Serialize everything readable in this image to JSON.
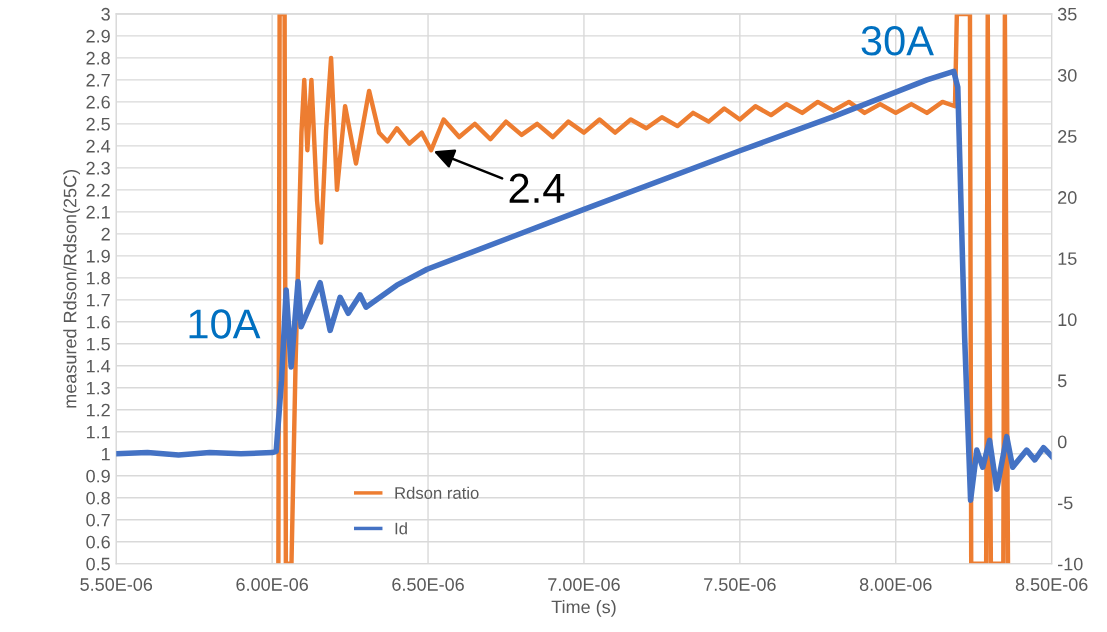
{
  "chart_data": {
    "type": "line",
    "xlabel": "Time (s)",
    "ylabel": "measured Rdson/Rdson(25C)",
    "xlim": [
      5.5e-06,
      8.5e-06
    ],
    "xticks": [
      {
        "value": 5.5e-06,
        "label": "5.50E-06"
      },
      {
        "value": 6e-06,
        "label": "6.00E-06"
      },
      {
        "value": 6.5e-06,
        "label": "6.50E-06"
      },
      {
        "value": 7e-06,
        "label": "7.00E-06"
      },
      {
        "value": 7.5e-06,
        "label": "7.50E-06"
      },
      {
        "value": 8e-06,
        "label": "8.00E-06"
      },
      {
        "value": 8.5e-06,
        "label": "8.50E-06"
      }
    ],
    "ylim": [
      0.5,
      3
    ],
    "yticks": [
      0.5,
      0.6,
      0.7,
      0.8,
      0.9,
      1,
      1.1,
      1.2,
      1.3,
      1.4,
      1.5,
      1.6,
      1.7,
      1.8,
      1.9,
      2,
      2.1,
      2.2,
      2.3,
      2.4,
      2.5,
      2.6,
      2.7,
      2.8,
      2.9,
      3
    ],
    "y2lim": [
      -10,
      35
    ],
    "y2ticks": [
      -10,
      -5,
      0,
      5,
      10,
      15,
      20,
      25,
      30,
      35
    ],
    "grid": true,
    "legend": "bottom",
    "marker": "none",
    "line_style": "solid",
    "annotations": [
      "10A",
      "30A",
      {
        "text": "2.4",
        "x": 6.51e-06,
        "y": 2.38
      }
    ],
    "series": [
      {
        "name": "Rdson ratio",
        "color": "#ed7d31",
        "x": [
          6.02e-06,
          6.024e-06,
          6.04e-06,
          6.044e-06,
          6.062e-06,
          6.075e-06,
          6.094e-06,
          6.103e-06,
          6.113e-06,
          6.126e-06,
          6.144e-06,
          6.157e-06,
          6.173e-06,
          6.189e-06,
          6.208e-06,
          6.234e-06,
          6.269e-06,
          6.311e-06,
          6.343e-06,
          6.37e-06,
          6.4e-06,
          6.44e-06,
          6.48e-06,
          6.51e-06,
          6.55e-06,
          6.6e-06,
          6.65e-06,
          6.7e-06,
          6.75e-06,
          6.8e-06,
          6.85e-06,
          6.9e-06,
          6.95e-06,
          7e-06,
          7.05e-06,
          7.1e-06,
          7.15e-06,
          7.2e-06,
          7.25e-06,
          7.3e-06,
          7.35e-06,
          7.4e-06,
          7.45e-06,
          7.5e-06,
          7.55e-06,
          7.6e-06,
          7.65e-06,
          7.7e-06,
          7.75e-06,
          7.8e-06,
          7.85e-06,
          7.9e-06,
          7.95e-06,
          8e-06,
          8.05e-06,
          8.1e-06,
          8.15e-06,
          8.19e-06,
          8.196e-06,
          8.238e-06,
          8.242e-06,
          8.29e-06,
          8.295e-06,
          8.305e-06,
          8.345e-06,
          8.35e-06,
          8.36e-06
        ],
        "values": [
          0.5,
          3,
          3,
          0.5,
          0.5,
          1.4,
          2.46,
          2.7,
          2.38,
          2.7,
          2.15,
          1.96,
          2.47,
          2.8,
          2.2,
          2.58,
          2.32,
          2.65,
          2.46,
          2.42,
          2.48,
          2.41,
          2.46,
          2.38,
          2.52,
          2.44,
          2.5,
          2.43,
          2.51,
          2.45,
          2.5,
          2.44,
          2.51,
          2.46,
          2.52,
          2.46,
          2.52,
          2.48,
          2.53,
          2.49,
          2.55,
          2.51,
          2.57,
          2.52,
          2.58,
          2.54,
          2.59,
          2.55,
          2.6,
          2.56,
          2.6,
          2.55,
          2.59,
          2.55,
          2.59,
          2.55,
          2.6,
          2.58,
          3,
          3,
          0.5,
          0.5,
          3,
          0.5,
          0.5,
          3,
          0.5
        ]
      },
      {
        "name": "Id",
        "color": "#4472c4",
        "axis": "y2",
        "x": [
          5.5e-06,
          5.6e-06,
          5.7e-06,
          5.8e-06,
          5.9e-06,
          6e-06,
          6.013e-06,
          6.03e-06,
          6.045e-06,
          6.061e-06,
          6.083e-06,
          6.093e-06,
          6.154e-06,
          6.186e-06,
          6.218e-06,
          6.244e-06,
          6.282e-06,
          6.301e-06,
          6.4e-06,
          6.497e-06,
          7e-06,
          7.5e-06,
          7.8e-06,
          8e-06,
          8.1e-06,
          8.186e-06,
          8.199e-06,
          8.221e-06,
          8.24e-06,
          8.26e-06,
          8.279e-06,
          8.301e-06,
          8.324e-06,
          8.356e-06,
          8.375e-06,
          8.42e-06,
          8.446e-06,
          8.474e-06,
          8.5e-06
        ],
        "values": [
          -1.0,
          -0.9,
          -1.1,
          -0.9,
          -1.0,
          -0.9,
          -0.8,
          5,
          12.4,
          6.1,
          13.1,
          9.4,
          13.0,
          9.1,
          11.8,
          10.5,
          12.0,
          11.0,
          12.8,
          14.1,
          19.0,
          23.8,
          26.6,
          28.6,
          29.6,
          30.3,
          29.0,
          8.5,
          -4.8,
          -0.7,
          -2.1,
          0.1,
          -3.9,
          0.4,
          -2.1,
          -0.7,
          -1.5,
          -0.5,
          -1.2
        ]
      }
    ]
  }
}
